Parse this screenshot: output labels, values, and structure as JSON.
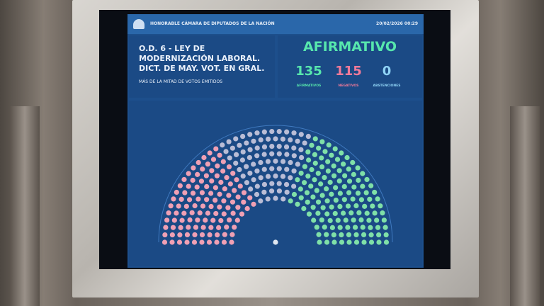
{
  "header": {
    "institution": "HONORABLE CÁMARA DE DIPUTADOS DE LA NACIÓN",
    "datetime": "20/02/2026 00:29"
  },
  "motion": {
    "title": "O.D. 6 - LEY DE MODERNIZACIÓN LABORAL. DICT. DE MAY. VOT. EN GRAL.",
    "majority": "MÁS DE LA MITAD DE VOTOS EMITIDOS"
  },
  "result": {
    "outcome": "AFIRMATIVO",
    "tallies": [
      {
        "count": "135",
        "label": "AFIRMATIVOS",
        "color": "#57e7ad"
      },
      {
        "count": "115",
        "label": "NEGATIVOS",
        "color": "#f07a9a"
      },
      {
        "count": "0",
        "label": "ABSTENCIONES",
        "color": "#8fd3f5"
      }
    ]
  },
  "hemicycle": {
    "colors": {
      "afirmativo": "#7fe0a8",
      "negativo": "#f0a0b4",
      "ausente": "#b9bdd6"
    }
  }
}
